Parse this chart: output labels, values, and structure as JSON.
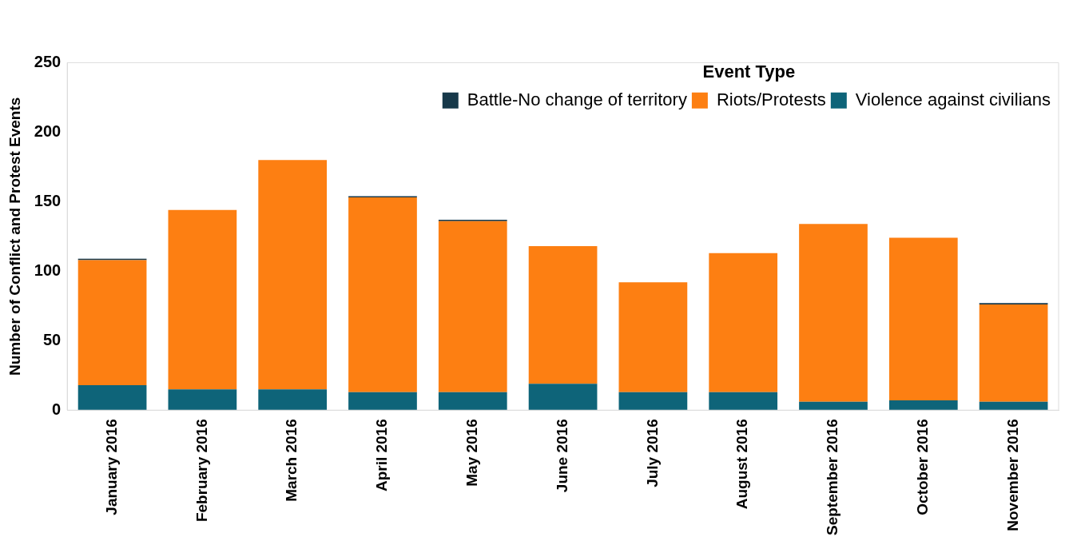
{
  "chart_data": {
    "type": "bar",
    "stacked": true,
    "ylabel": "Number of Conflict and Protest Events",
    "legend_title": "Event Type",
    "legend": "top right",
    "grid": false,
    "categories": [
      "January 2016",
      "February 2016",
      "March 2016",
      "April 2016",
      "May 2016",
      "June 2016",
      "July 2016",
      "August 2016",
      "September 2016",
      "October 2016",
      "November 2016"
    ],
    "ylim": [
      0,
      250
    ],
    "yticks": [
      0,
      50,
      100,
      150,
      200,
      250
    ],
    "series": [
      {
        "name": "Violence against civilians",
        "color": "#0e6479",
        "values": [
          18,
          15,
          15,
          13,
          13,
          19,
          13,
          13,
          6,
          7,
          6
        ]
      },
      {
        "name": "Riots/Protests",
        "color": "#fd7f12",
        "values": [
          90,
          129,
          165,
          140,
          123,
          99,
          79,
          100,
          128,
          117,
          70
        ]
      },
      {
        "name": "Battle-No change of territory",
        "color": "#17394a",
        "values": [
          1,
          null,
          null,
          1,
          1,
          null,
          null,
          null,
          null,
          null,
          1
        ]
      }
    ]
  }
}
